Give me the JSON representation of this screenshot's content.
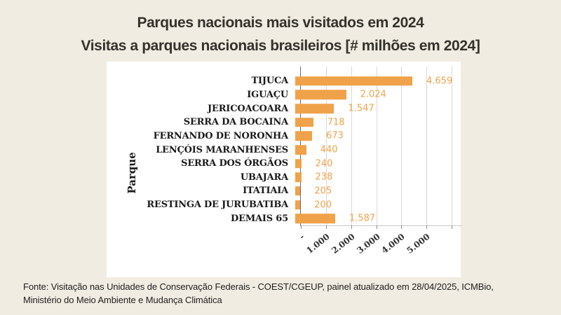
{
  "page": {
    "background_color": "#f1ece1",
    "panel_color": "#ffffff",
    "accent_color": "#f0a24a"
  },
  "header": {
    "title": "Parques nacionais mais visitados em 2024",
    "subtitle": "Visitas a parques nacionais brasileiros [# milhões em 2024]"
  },
  "footer": {
    "line1": "Fonte: Visitação nas Unidades de Conservação Federais - COEST/CGEUP, painel atualizado em 28/04/2025, ICMBio,",
    "line2": "Ministério do Meio Ambiente e Mudança Climática"
  },
  "chart_data": {
    "type": "bar",
    "orientation": "horizontal",
    "title": "Parques nacionais mais visitados em 2024",
    "subtitle": "Visitas a parques nacionais brasileiros [# milhões em 2024]",
    "ylabel": "Parque",
    "xlabel": "",
    "legend": "none",
    "grid": "vertical gridlines every 1.000",
    "categories": [
      "TIJUCA",
      "IGUAÇU",
      "JERICOACOARA",
      "SERRA DA BOCAINA",
      "FERNANDO DE NORONHA",
      "LENÇÓIS MARANHENSES",
      "SERRA DOS ÓRGÃOS",
      "UBAJARA",
      "ITATIAIA",
      "RESTINGA DE JURUBATIBA",
      "DEMAIS 65"
    ],
    "values": [
      4659,
      2024,
      1547,
      718,
      673,
      440,
      240,
      238,
      205,
      200,
      1587
    ],
    "value_labels": [
      "4.659",
      "2.024",
      "1.547",
      "718",
      "673",
      "440",
      "240",
      "238",
      "205",
      "200",
      "1.587"
    ],
    "xlim": [
      0,
      6415
    ],
    "x_ticks": [
      {
        "value": 0,
        "label": "-"
      },
      {
        "value": 1000,
        "label": "1.000"
      },
      {
        "value": 2000,
        "label": "2.000"
      },
      {
        "value": 3000,
        "label": "3.000"
      },
      {
        "value": 4000,
        "label": "4.000"
      },
      {
        "value": 5000,
        "label": "5.000"
      },
      {
        "value": 6000,
        "label": ""
      }
    ],
    "bar_color": "#f0a24a",
    "value_label_color": "#f0a24a",
    "gridline_color": "#d8d8d8",
    "axis_color": "#6b6b6b"
  }
}
